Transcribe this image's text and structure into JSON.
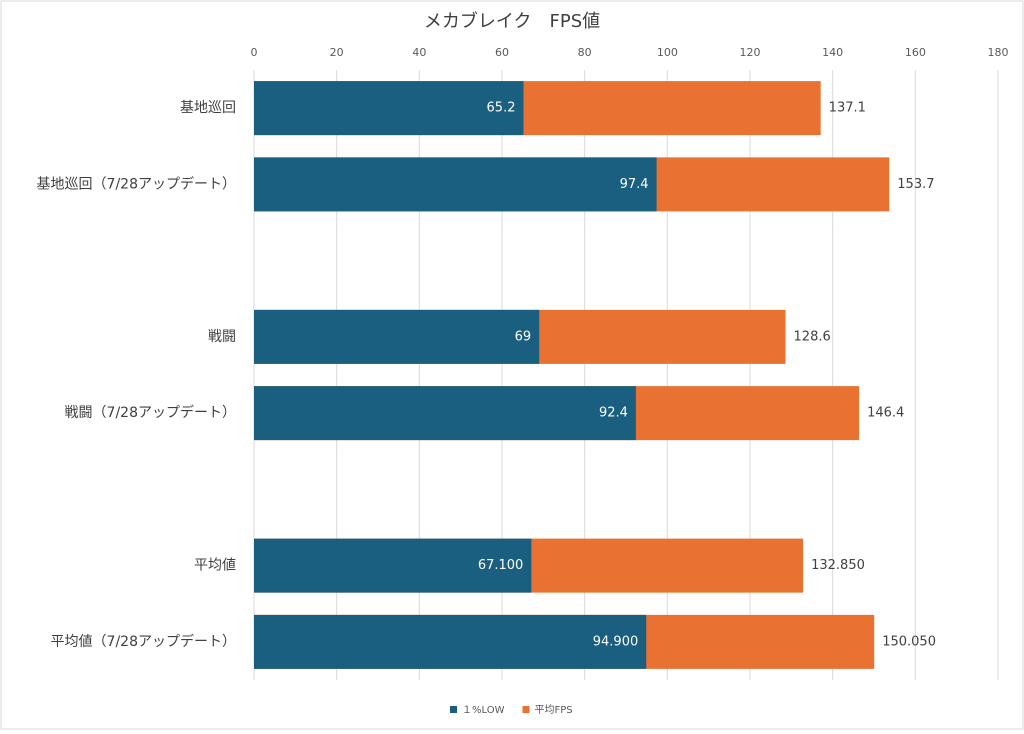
{
  "chart_data": {
    "type": "bar",
    "orientation": "horizontal",
    "overlap": true,
    "title": "メカブレイク　FPS値",
    "categories": [
      "基地巡回",
      "基地巡回（7/28アップデート）",
      null,
      "戦闘",
      "戦闘（7/28アップデート）",
      null,
      "平均値",
      "平均値（7/28アップデート）"
    ],
    "series": [
      {
        "name": "平均FPS",
        "color": "#e97132",
        "values": [
          137.1,
          153.7,
          null,
          128.6,
          146.4,
          null,
          132.85,
          150.05
        ],
        "value_labels": [
          "137.1",
          "153.7",
          null,
          "128.6",
          "146.4",
          null,
          "132.850",
          "150.050"
        ]
      },
      {
        "name": "１%LOW",
        "color": "#1a5f80",
        "values": [
          65.2,
          97.4,
          null,
          69,
          92.4,
          null,
          67.1,
          94.9
        ],
        "value_labels": [
          "65.2",
          "97.4",
          null,
          "69",
          "92.4",
          null,
          "67.100",
          "94.900"
        ]
      }
    ],
    "legend_order": [
      1,
      0
    ],
    "xlim": [
      0,
      180
    ],
    "xticks": [
      0,
      20,
      40,
      60,
      80,
      100,
      120,
      140,
      160,
      180
    ],
    "grid": true,
    "legend": "bottom"
  }
}
